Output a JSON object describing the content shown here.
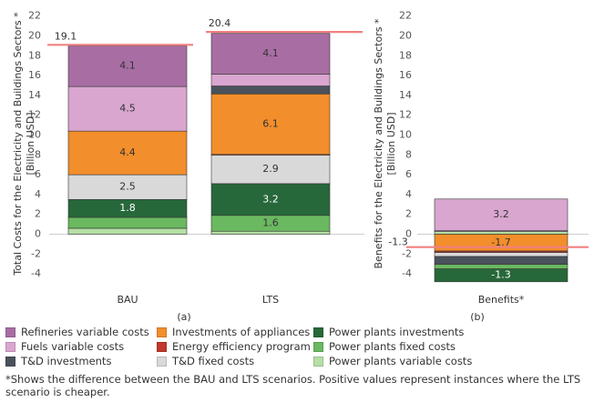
{
  "chart_data": [
    {
      "type": "bar",
      "stacked": true,
      "panel_label": "(a)",
      "ylabel": "Total Costs for the Electricity and Buildings Sectors *\n[Billion USD]",
      "ylim": [
        -6,
        22
      ],
      "yticks": [
        -4,
        -2,
        0,
        2,
        4,
        6,
        8,
        10,
        12,
        14,
        16,
        18,
        20,
        22
      ],
      "categories": [
        "BAU",
        "LTS"
      ],
      "totals": [
        19.1,
        20.4
      ],
      "total_labels": [
        "19.1",
        "20.4"
      ],
      "series": [
        {
          "name": "Power plants variable costs",
          "values": [
            0.6,
            0.3
          ]
        },
        {
          "name": "Power plants fixed costs",
          "values": [
            1.1,
            1.6
          ],
          "labels": [
            "",
            "1.6"
          ]
        },
        {
          "name": "Power plants investments",
          "values": [
            1.8,
            3.2
          ],
          "labels": [
            "1.8",
            "3.2"
          ]
        },
        {
          "name": "T&D fixed costs",
          "values": [
            2.5,
            2.9
          ],
          "labels": [
            "2.5",
            "2.9"
          ]
        },
        {
          "name": "Energy efficiency program",
          "values": [
            0.0,
            0.05
          ]
        },
        {
          "name": "Investments of appliances",
          "values": [
            4.4,
            6.1
          ],
          "labels": [
            "4.4",
            "6.1"
          ]
        },
        {
          "name": "T&D investments",
          "values": [
            0.0,
            0.8
          ]
        },
        {
          "name": "Fuels variable costs",
          "values": [
            4.5,
            1.2
          ],
          "labels": [
            "4.5",
            ""
          ]
        },
        {
          "name": "Refineries variable costs",
          "values": [
            4.1,
            4.1
          ],
          "labels": [
            "4.1",
            "4.1"
          ]
        }
      ]
    },
    {
      "type": "bar",
      "stacked": true,
      "panel_label": "(b)",
      "ylabel": "Benefits for the Electricity and Buildings Sectors *\n[Billion USD]",
      "ylim": [
        -6,
        22
      ],
      "yticks": [
        -4,
        -2,
        0,
        2,
        4,
        6,
        8,
        10,
        12,
        14,
        16,
        18,
        20,
        22
      ],
      "categories": [
        "Benefits*"
      ],
      "total": -1.3,
      "total_label": "-1.3",
      "positive_segments": [
        {
          "name": "Power plants variable costs",
          "value": 0.3
        },
        {
          "name": "Refineries variable costs",
          "value": 0.05
        },
        {
          "name": "Fuels variable costs",
          "value": 3.2,
          "label": "3.2"
        }
      ],
      "negative_segments": [
        {
          "name": "Investments of appliances",
          "value": -1.7,
          "label": "-1.7"
        },
        {
          "name": "Energy efficiency program",
          "value": -0.15
        },
        {
          "name": "T&D fixed costs",
          "value": -0.4
        },
        {
          "name": "T&D investments",
          "value": -0.8
        },
        {
          "name": "Power plants fixed costs",
          "value": -0.45
        },
        {
          "name": "Power plants investments",
          "value": -1.3,
          "label": "-1.3"
        }
      ]
    }
  ],
  "colors": {
    "Refineries variable costs": "#a86ea4",
    "Fuels variable costs": "#d9a6cf",
    "Investments of appliances": "#f28e2b",
    "Energy efficiency program": "#c0392b",
    "T&D fixed costs": "#d9d9d9",
    "T&D investments": "#4a525b",
    "Power plants investments": "#27683a",
    "Power plants fixed costs": "#6ab960",
    "Power plants variable costs": "#b5dfa4",
    "total_line": "#f08080"
  },
  "legend": [
    {
      "label": "Refineries variable costs",
      "color": "#a86ea4"
    },
    {
      "label": "Investments of appliances",
      "color": "#f28e2b"
    },
    {
      "label": "Power plants investments",
      "color": "#27683a"
    },
    {
      "label": "Fuels variable costs",
      "color": "#d9a6cf"
    },
    {
      "label": "Energy efficiency program",
      "color": "#c0392b"
    },
    {
      "label": "Power plants fixed costs",
      "color": "#6ab960"
    },
    {
      "label": "T&D investments",
      "color": "#4a525b"
    },
    {
      "label": "T&D fixed costs",
      "color": "#d9d9d9"
    },
    {
      "label": "Power plants variable costs",
      "color": "#b5dfa4"
    }
  ],
  "footnote": "*Shows the difference between the BAU and LTS scenarios. Positive values represent instances where the LTS scenario is cheaper."
}
